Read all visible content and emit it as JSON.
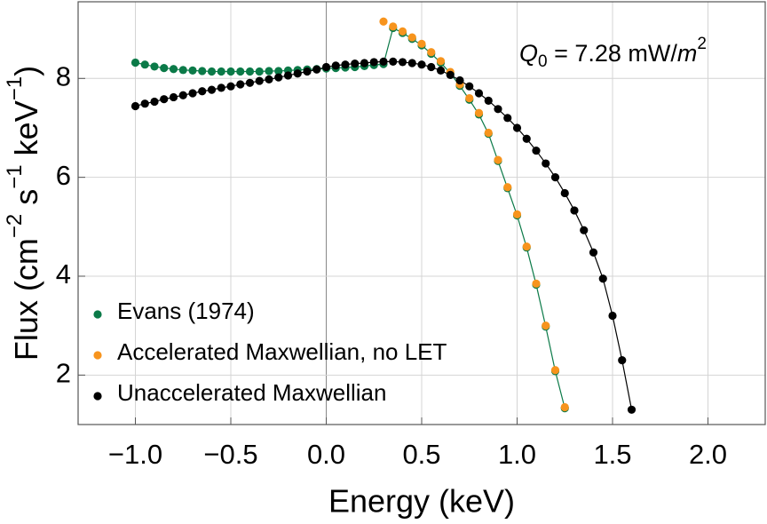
{
  "chart_data": {
    "type": "scatter",
    "x_label": "Energy (keV)",
    "y_label": [
      "Flux (cm",
      "−2",
      " s",
      "−1",
      " keV",
      "−1",
      ")"
    ],
    "annotation": [
      "Q",
      "0",
      " = 7.28 mW/",
      "m",
      "2"
    ],
    "xlim": [
      -1.3,
      2.3
    ],
    "ylim": [
      1,
      9.55
    ],
    "xticks": [
      {
        "value": -1,
        "label": "−1.0"
      },
      {
        "value": -0.5,
        "label": "−0.5"
      },
      {
        "value": 0,
        "label": "0.0"
      },
      0.5,
      {
        "value": 1,
        "label": "1.0"
      },
      1.5,
      {
        "value": 2,
        "label": "2.0"
      }
    ],
    "yticks": [
      2,
      4,
      6,
      8
    ],
    "grid": true,
    "legend": "lower-left",
    "series": [
      {
        "name": "Evans (1974)",
        "color": "#0b7a48",
        "line": true,
        "x": [
          -1,
          -0.95,
          -0.9,
          -0.85,
          -0.8,
          -0.75,
          -0.7,
          -0.65,
          -0.6,
          -0.55,
          -0.5,
          -0.45,
          -0.4,
          -0.35,
          -0.3,
          -0.25,
          -0.2,
          -0.15,
          -0.1,
          -0.05,
          0,
          0.05,
          0.1,
          0.15,
          0.2,
          0.25,
          0.3,
          0.35,
          0.4,
          0.45,
          0.5,
          0.55,
          0.6,
          0.65,
          0.7,
          0.75,
          0.8,
          0.85,
          0.9,
          0.95,
          1,
          1.05,
          1.1,
          1.15,
          1.2,
          1.25
        ],
        "values": [
          8.32,
          8.28,
          8.24,
          8.21,
          8.19,
          8.17,
          8.16,
          8.15,
          8.14,
          8.14,
          8.14,
          8.14,
          8.14,
          8.14,
          8.15,
          8.15,
          8.16,
          8.17,
          8.18,
          8.19,
          8.2,
          8.21,
          8.22,
          8.23,
          8.25,
          8.27,
          8.29,
          9.02,
          8.92,
          8.8,
          8.67,
          8.5,
          8.32,
          8.1,
          7.85,
          7.57,
          7.27,
          6.88,
          6.33,
          5.78,
          5.23,
          4.58,
          3.83,
          2.98,
          2.08,
          1.33
        ]
      },
      {
        "name": "Accelerated Maxwellian, no LET",
        "color": "#f7941d",
        "line": false,
        "x": [
          0.3,
          0.35,
          0.4,
          0.45,
          0.5,
          0.55,
          0.6,
          0.65,
          0.7,
          0.75,
          0.8,
          0.85,
          0.9,
          0.95,
          1,
          1.05,
          1.1,
          1.15,
          1.2,
          1.25
        ],
        "values": [
          9.15,
          9.05,
          8.95,
          8.83,
          8.7,
          8.53,
          8.35,
          8.13,
          7.88,
          7.6,
          7.3,
          6.9,
          6.35,
          5.8,
          5.25,
          4.6,
          3.85,
          3.0,
          2.1,
          1.35
        ]
      },
      {
        "name": "Unaccelerated Maxwellian",
        "color": "#000000",
        "line": true,
        "x": [
          -1,
          -0.95,
          -0.9,
          -0.85,
          -0.8,
          -0.75,
          -0.7,
          -0.65,
          -0.6,
          -0.55,
          -0.5,
          -0.45,
          -0.4,
          -0.35,
          -0.3,
          -0.25,
          -0.2,
          -0.15,
          -0.1,
          -0.05,
          0,
          0.05,
          0.1,
          0.15,
          0.2,
          0.25,
          0.3,
          0.35,
          0.4,
          0.45,
          0.5,
          0.55,
          0.6,
          0.65,
          0.7,
          0.75,
          0.8,
          0.85,
          0.9,
          0.95,
          1,
          1.05,
          1.1,
          1.15,
          1.2,
          1.25,
          1.3,
          1.35,
          1.4,
          1.45,
          1.5,
          1.55,
          1.6
        ],
        "values": [
          7.44,
          7.49,
          7.53,
          7.58,
          7.62,
          7.66,
          7.7,
          7.74,
          7.77,
          7.81,
          7.84,
          7.88,
          7.91,
          7.95,
          7.98,
          8.02,
          8.06,
          8.1,
          8.14,
          8.18,
          8.23,
          8.26,
          8.28,
          8.3,
          8.31,
          8.33,
          8.34,
          8.34,
          8.33,
          8.31,
          8.28,
          8.23,
          8.16,
          8.07,
          7.96,
          7.84,
          7.7,
          7.55,
          7.38,
          7.2,
          7.0,
          6.78,
          6.54,
          6.28,
          6.0,
          5.68,
          5.33,
          4.93,
          4.48,
          3.95,
          3.2,
          2.3,
          1.3
        ]
      }
    ]
  }
}
